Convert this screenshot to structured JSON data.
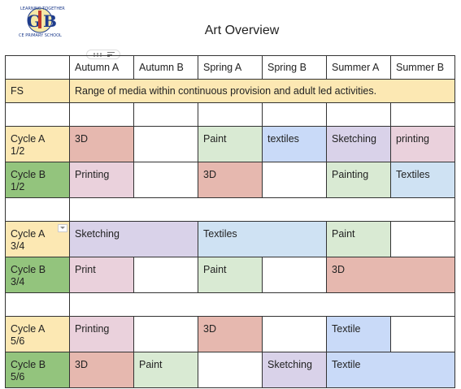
{
  "logo": {
    "text_top": "LEARNING TOGETHER",
    "initials": "G B",
    "text_bottom": "CE PRIMARY SCHOOL"
  },
  "title": "Art Overview",
  "colors": {
    "fs_yellow": "#fce8b3",
    "cycle_a_yellow": "#fce8b3",
    "cycle_b_green": "#93c47d",
    "3d_red": "#e6b8af",
    "paint_green": "#d9ead3",
    "textiles_blue": "#c9daf8",
    "sketching_purple": "#d9d2e9",
    "printing_pink": "#ead1dc",
    "textiles_lightblue": "#cfe2f3"
  },
  "table": {
    "headers": [
      "",
      "Autumn A",
      "Autumn B",
      "Spring A",
      "Spring B",
      "Summer A",
      "Summer B"
    ],
    "fs": {
      "label": "FS",
      "text": "Range of media within continuous provision and adult led activities."
    },
    "rows": {
      "a12": {
        "label": "Cycle A\n1/2",
        "c1": "3D",
        "c2": "",
        "c3": "Paint",
        "c4": "textiles",
        "c5": "Sketching",
        "c6": "printing"
      },
      "b12": {
        "label": "Cycle B\n1/2",
        "c1": "Printing",
        "c2": "",
        "c3": "3D",
        "c4": "",
        "c5": "Painting",
        "c6": "Textiles"
      },
      "a34": {
        "label": "Cycle A\n3/4",
        "c12": "Sketching",
        "c34": "Textiles",
        "c5": "Paint",
        "c6": ""
      },
      "b34": {
        "label": "Cycle B\n3/4",
        "c1": "Print",
        "c2": "",
        "c3": "Paint",
        "c4": "",
        "c56": "3D"
      },
      "a56": {
        "label": "Cycle A\n5/6",
        "c1": "Printing",
        "c2": "",
        "c3": "3D",
        "c4": "",
        "c5": "Textile",
        "c6": ""
      },
      "b56": {
        "label": "Cycle B\n5/6",
        "c1": "3D",
        "c2": "Paint",
        "c3": "",
        "c4": "Sketching",
        "c56": "Textile"
      }
    }
  }
}
